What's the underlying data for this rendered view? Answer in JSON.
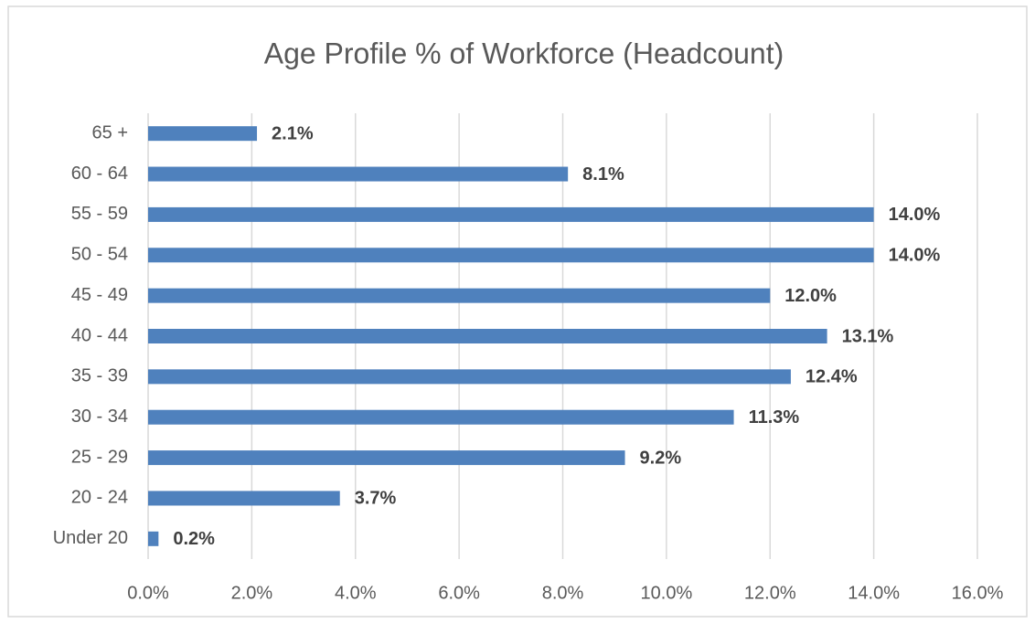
{
  "chart_data": {
    "type": "bar",
    "orientation": "horizontal",
    "title": "Age Profile % of Workforce (Headcount)",
    "categories": [
      "65 +",
      "60 - 64",
      "55 - 59",
      "50 - 54",
      "45 - 49",
      "40 - 44",
      "35 - 39",
      "30 - 34",
      "25 - 29",
      "20 - 24",
      "Under 20"
    ],
    "values": [
      2.1,
      8.1,
      14.0,
      14.0,
      12.0,
      13.1,
      12.4,
      11.3,
      9.2,
      3.7,
      0.2
    ],
    "value_labels": [
      "2.1%",
      "8.1%",
      "14.0%",
      "14.0%",
      "12.0%",
      "13.1%",
      "12.4%",
      "11.3%",
      "9.2%",
      "3.7%",
      "0.2%"
    ],
    "color": "#4f81bd",
    "xlim": [
      0,
      16
    ],
    "xticks": [
      {
        "value": 0,
        "label": "0.0%"
      },
      {
        "value": 2,
        "label": "2.0%"
      },
      {
        "value": 4,
        "label": "4.0%"
      },
      {
        "value": 6,
        "label": "6.0%"
      },
      {
        "value": 8,
        "label": "8.0%"
      },
      {
        "value": 10,
        "label": "10.0%"
      },
      {
        "value": 12,
        "label": "12.0%"
      },
      {
        "value": 14,
        "label": "14.0%"
      },
      {
        "value": 16,
        "label": "16.0%"
      }
    ],
    "grid": true
  }
}
